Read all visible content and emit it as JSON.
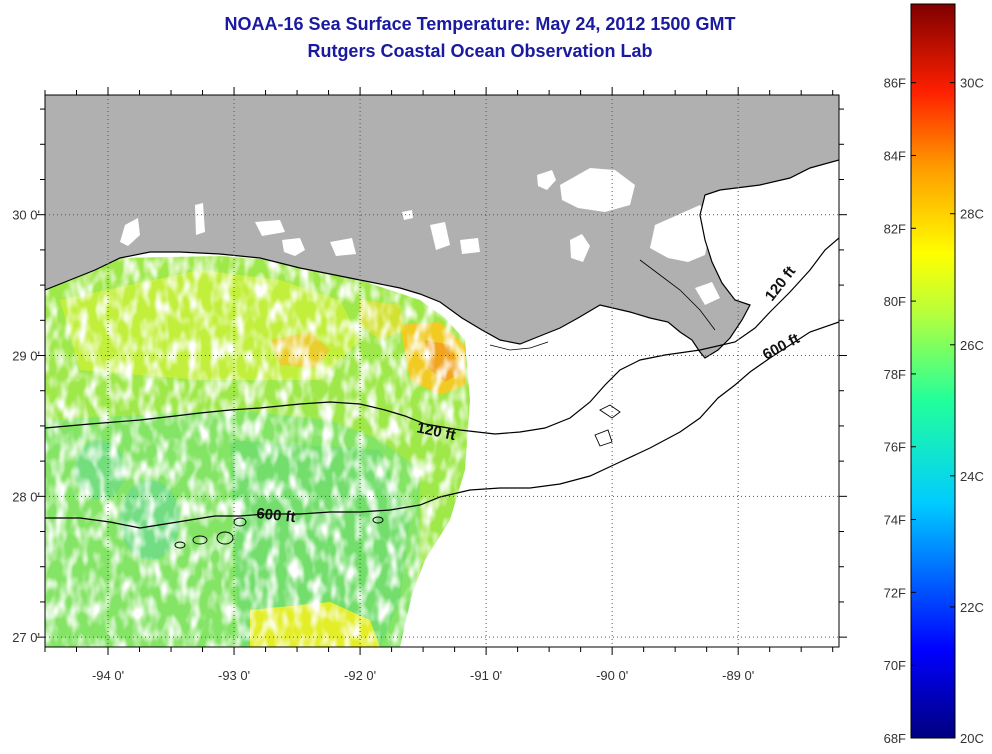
{
  "header": {
    "title": "NOAA-16 Sea Surface Temperature:  May 24, 2012 1500 GMT",
    "subtitle": "Rutgers Coastal Ocean Observation Lab"
  },
  "map": {
    "region": "Northern Gulf of Mexico - Louisiana coast",
    "lon_range": [
      -94.5,
      -88.2
    ],
    "lat_range": [
      26.93,
      30.85
    ],
    "lon_ticks": [
      {
        "value": -94,
        "label": "-94 0'"
      },
      {
        "value": -93,
        "label": "-93 0'"
      },
      {
        "value": -92,
        "label": "-92 0'"
      },
      {
        "value": -91,
        "label": "-91 0'"
      },
      {
        "value": -90,
        "label": "-90 0'"
      },
      {
        "value": -89,
        "label": "-89 0'"
      }
    ],
    "lat_ticks": [
      {
        "value": 30,
        "label": "30 0'"
      },
      {
        "value": 29,
        "label": "29 0'"
      },
      {
        "value": 28,
        "label": "28 0'"
      },
      {
        "value": 27,
        "label": "27 0'"
      }
    ],
    "grid": "dotted",
    "colors": {
      "land": "#b0b0b0",
      "water_no_data": "#ffffff",
      "contour": "#000000"
    },
    "contour_labels": {
      "c120_west": "120 ft",
      "c600_west": "600 ft",
      "c120_east": "120 ft",
      "c600_east": "600 ft"
    }
  },
  "colorbar": {
    "range_c": [
      20,
      31.2
    ],
    "celsius_labels": [
      {
        "value": 20,
        "label": "20C"
      },
      {
        "value": 22,
        "label": "22C"
      },
      {
        "value": 24,
        "label": "24C"
      },
      {
        "value": 26,
        "label": "26C"
      },
      {
        "value": 28,
        "label": "28C"
      },
      {
        "value": 30,
        "label": "30C"
      }
    ],
    "fahrenheit_labels": [
      {
        "value": 68,
        "label": "68F"
      },
      {
        "value": 70,
        "label": "70F"
      },
      {
        "value": 72,
        "label": "72F"
      },
      {
        "value": 74,
        "label": "74F"
      },
      {
        "value": 76,
        "label": "76F"
      },
      {
        "value": 78,
        "label": "78F"
      },
      {
        "value": 80,
        "label": "80F"
      },
      {
        "value": 82,
        "label": "82F"
      },
      {
        "value": 84,
        "label": "84F"
      },
      {
        "value": 86,
        "label": "86F"
      }
    ],
    "colormap": "jet"
  }
}
